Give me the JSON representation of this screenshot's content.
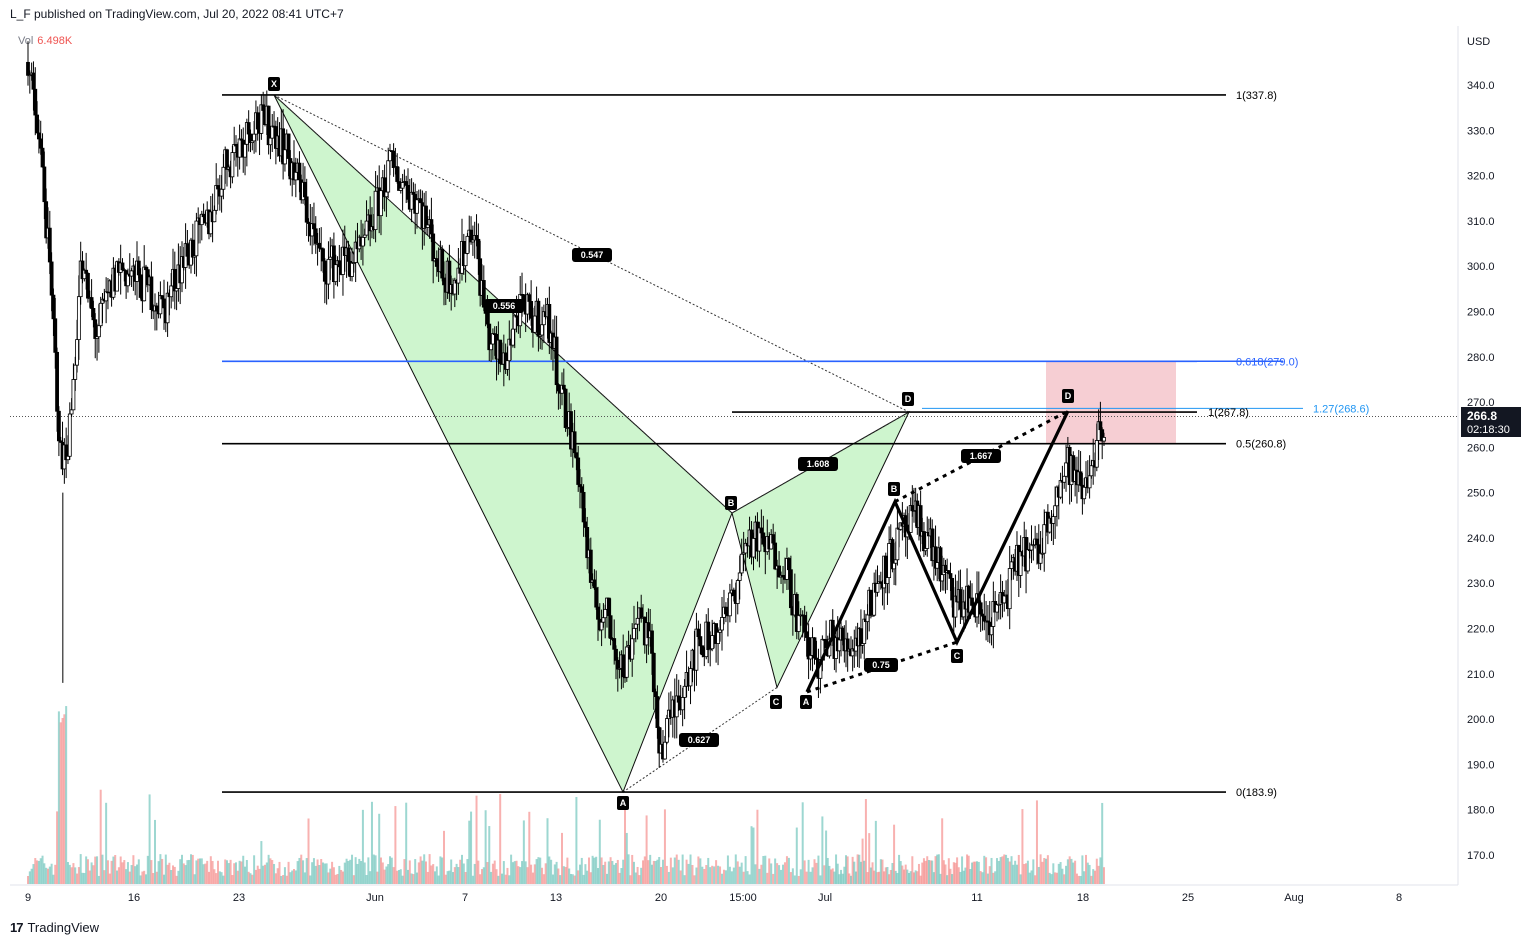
{
  "header": {
    "text": "L_F published on TradingView.com, Jul 20, 2022 08:41 UTC+7"
  },
  "footer": {
    "logo": "17",
    "brand": "TradingView"
  },
  "volume": {
    "label": "Vol",
    "value": "6.498K"
  },
  "colors": {
    "bull": "#26a69a",
    "bear": "#ef5350",
    "green_fill": "#ccf5cc",
    "pink_fill": "#f5c6cb",
    "blue_line": "#2962ff",
    "light_blue": "#2196f3",
    "axis_text": "#131722",
    "price_tag_bg": "#131722"
  },
  "chart_data": {
    "type": "candlestick",
    "currency": "USD",
    "y_ticks": [
      "340.0",
      "330.0",
      "320.0",
      "310.0",
      "300.0",
      "290.0",
      "280.0",
      "270.0",
      "260.0",
      "250.0",
      "240.0",
      "230.0",
      "220.0",
      "210.0",
      "200.0",
      "190.0",
      "180.0",
      "170.0"
    ],
    "x_ticks": [
      "9",
      "16",
      "23",
      "Jun",
      "7",
      "13",
      "20",
      "15:00",
      "Jul",
      "11",
      "18",
      "25",
      "Aug",
      "8"
    ],
    "ylim": [
      163,
      350
    ],
    "current_price": {
      "value": "266.8",
      "countdown": "02:18:30"
    },
    "fib_levels": [
      {
        "label": "1(337.8)",
        "value": 337.8,
        "color": "#000000"
      },
      {
        "label": "0.618(279.0)",
        "value": 279.0,
        "color": "#2962ff"
      },
      {
        "label": "1.27(268.6)",
        "value": 268.6,
        "color": "#2196f3"
      },
      {
        "label": "1(267.8)",
        "value": 267.8,
        "color": "#000000"
      },
      {
        "label": "0.5(260.8)",
        "value": 260.8,
        "color": "#000000"
      },
      {
        "label": "0(183.9)",
        "value": 183.9,
        "color": "#000000"
      }
    ],
    "harmonic_1": {
      "points": [
        {
          "label": "X",
          "date": "May 25",
          "price": 337.8
        },
        {
          "label": "A",
          "date": "Jun 17",
          "price": 183.9
        },
        {
          "label": "B",
          "date": "Jun 25",
          "price": 245.5
        },
        {
          "label": "C",
          "date": "Jun 27",
          "price": 207
        },
        {
          "label": "D",
          "date": "Jul 6",
          "price": 267.8
        }
      ],
      "ratios": [
        {
          "label": "0.547",
          "between": "X-D"
        },
        {
          "label": "0.556",
          "between": "X-B"
        },
        {
          "label": "1.608",
          "between": "B-D"
        },
        {
          "label": "0.627",
          "between": "A-C"
        }
      ]
    },
    "harmonic_2": {
      "points": [
        {
          "label": "A",
          "date": "Jun 29",
          "price": 206
        },
        {
          "label": "B",
          "date": "Jul 5",
          "price": 248
        },
        {
          "label": "C",
          "date": "Jul 10",
          "price": 217
        },
        {
          "label": "D",
          "date": "Jul 16",
          "price": 268
        }
      ],
      "ratios": [
        {
          "label": "1.667",
          "between": "B-D"
        },
        {
          "label": "0.75",
          "between": "A-C"
        }
      ]
    },
    "target_zone": {
      "from": 260.8,
      "to": 279.0
    }
  }
}
